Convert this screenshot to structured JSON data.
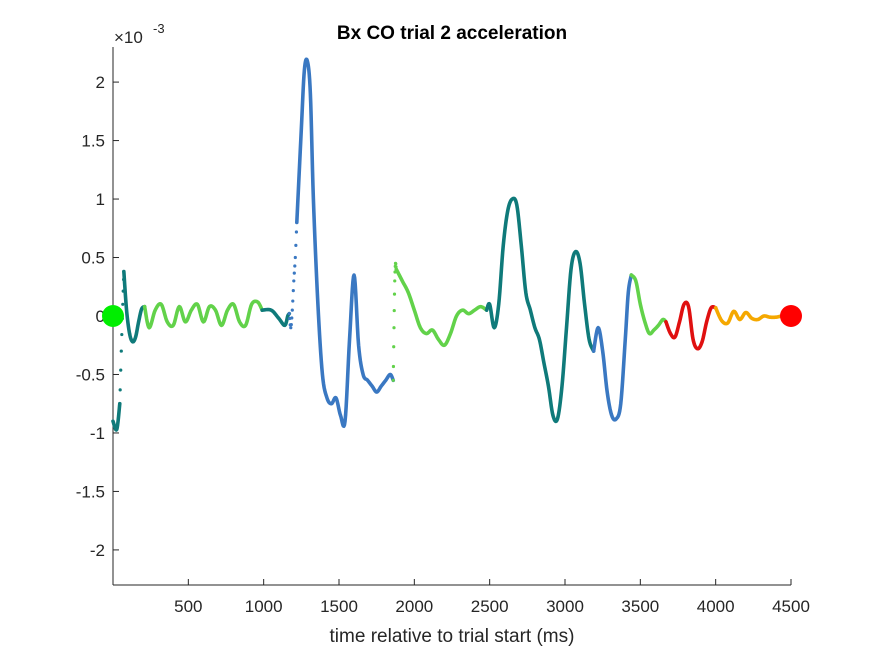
{
  "chart_data": {
    "type": "line",
    "title": "Bx  CO trial 2 acceleration",
    "xlabel": "time relative to trial start (ms)",
    "ylabel": "",
    "y_exponent_label": "×10",
    "y_exponent_power": "-3",
    "xlim": [
      0,
      4500
    ],
    "ylim": [
      -2.3,
      2.3
    ],
    "x_ticks": [
      500,
      1000,
      1500,
      2000,
      2500,
      3000,
      3500,
      4000,
      4500
    ],
    "x_tick_labels": [
      "500",
      "1000",
      "1500",
      "2000",
      "2500",
      "3000",
      "3500",
      "4000",
      "4500"
    ],
    "y_ticks": [
      -2,
      -1.5,
      -1,
      -0.5,
      0,
      0.5,
      1,
      1.5,
      2
    ],
    "y_tick_labels": [
      "-2",
      "-1.5",
      "-1",
      "-0.5",
      "0",
      "0.5",
      "1",
      "1.5",
      "2"
    ],
    "colors": {
      "teal": "#0f7a7a",
      "blue": "#3a78c2",
      "lightgreen": "#62d24a",
      "red": "#e01010",
      "orange": "#f5a800",
      "start_marker": "#00ee00",
      "end_marker": "#ff0000"
    },
    "series": [
      {
        "name": "seg1",
        "color": "teal",
        "dotted": false,
        "x": [
          0,
          25,
          45
        ],
        "y": [
          -0.9,
          -0.97,
          -0.75
        ]
      },
      {
        "name": "seg1-dots",
        "color": "teal",
        "dotted": true,
        "x": [
          45,
          55,
          65,
          72
        ],
        "y": [
          -0.75,
          -0.3,
          0.1,
          0.38
        ]
      },
      {
        "name": "seg2",
        "color": "teal",
        "dotted": false,
        "x": [
          72,
          90,
          110,
          130,
          150,
          170,
          190,
          210
        ],
        "y": [
          0.38,
          0.05,
          -0.15,
          -0.22,
          -0.18,
          -0.05,
          0.06,
          0.08
        ]
      },
      {
        "name": "seg3",
        "color": "lightgreen",
        "dotted": false,
        "x": [
          210,
          240,
          280,
          320,
          360,
          400,
          440,
          480,
          520,
          560,
          600,
          640,
          680,
          720,
          760,
          800,
          840,
          880,
          920,
          960,
          990
        ],
        "y": [
          0.08,
          -0.1,
          0.05,
          0.1,
          -0.05,
          -0.08,
          0.08,
          -0.05,
          0.05,
          0.1,
          -0.05,
          0.08,
          0.05,
          -0.08,
          0.05,
          0.1,
          -0.05,
          -0.08,
          0.1,
          0.12,
          0.05
        ]
      },
      {
        "name": "seg4",
        "color": "teal",
        "dotted": false,
        "x": [
          990,
          1050,
          1100,
          1140,
          1160,
          1170
        ],
        "y": [
          0.05,
          0.05,
          -0.02,
          -0.08,
          0.0,
          0.02
        ]
      },
      {
        "name": "seg5-dots",
        "color": "blue",
        "dotted": true,
        "x": [
          1170,
          1180,
          1190,
          1200,
          1210,
          1220
        ],
        "y": [
          0.02,
          -0.1,
          0.05,
          0.3,
          0.5,
          0.8
        ]
      },
      {
        "name": "seg5",
        "color": "blue",
        "dotted": false,
        "x": [
          1220,
          1250,
          1270,
          1290,
          1310,
          1330,
          1360,
          1390,
          1420,
          1450,
          1480,
          1510,
          1540,
          1570,
          1600,
          1630,
          1660,
          1690,
          1720,
          1750,
          1780,
          1810,
          1840,
          1860
        ],
        "y": [
          0.8,
          1.6,
          2.1,
          2.18,
          1.9,
          1.0,
          0.1,
          -0.5,
          -0.7,
          -0.75,
          -0.7,
          -0.85,
          -0.9,
          -0.2,
          0.35,
          -0.25,
          -0.5,
          -0.55,
          -0.6,
          -0.65,
          -0.6,
          -0.55,
          -0.5,
          -0.55
        ]
      },
      {
        "name": "seg6-dots",
        "color": "lightgreen",
        "dotted": true,
        "x": [
          1860,
          1865,
          1870,
          1875,
          1880
        ],
        "y": [
          -0.55,
          -0.1,
          0.3,
          0.45,
          0.4
        ]
      },
      {
        "name": "seg6",
        "color": "lightgreen",
        "dotted": false,
        "x": [
          1880,
          1920,
          1960,
          2000,
          2040,
          2080,
          2120,
          2160,
          2200,
          2240,
          2280,
          2320,
          2360,
          2400,
          2440,
          2480
        ],
        "y": [
          0.4,
          0.3,
          0.2,
          0.05,
          -0.1,
          -0.15,
          -0.12,
          -0.2,
          -0.25,
          -0.15,
          0.0,
          0.05,
          0.02,
          0.05,
          0.08,
          0.05
        ]
      },
      {
        "name": "seg7",
        "color": "teal",
        "dotted": false,
        "x": [
          2480,
          2500,
          2530,
          2560,
          2590,
          2620,
          2650,
          2680,
          2710,
          2740,
          2770,
          2800,
          2830,
          2860,
          2890,
          2920,
          2950,
          2980,
          3010,
          3040,
          3070,
          3100,
          3130,
          3160,
          3190
        ],
        "y": [
          0.05,
          0.1,
          -0.1,
          0.1,
          0.6,
          0.9,
          1.0,
          0.95,
          0.6,
          0.2,
          0.05,
          -0.1,
          -0.2,
          -0.4,
          -0.6,
          -0.85,
          -0.88,
          -0.6,
          -0.1,
          0.4,
          0.55,
          0.45,
          0.1,
          -0.2,
          -0.3
        ]
      },
      {
        "name": "seg8",
        "color": "blue",
        "dotted": false,
        "x": [
          3190,
          3220,
          3250,
          3280,
          3310,
          3340,
          3370,
          3400,
          3420,
          3440
        ],
        "y": [
          -0.3,
          -0.1,
          -0.3,
          -0.65,
          -0.85,
          -0.88,
          -0.75,
          -0.2,
          0.2,
          0.35
        ]
      },
      {
        "name": "seg9",
        "color": "lightgreen",
        "dotted": false,
        "x": [
          3440,
          3470,
          3500,
          3530,
          3560,
          3590,
          3620,
          3650,
          3670
        ],
        "y": [
          0.35,
          0.3,
          0.1,
          -0.05,
          -0.15,
          -0.12,
          -0.08,
          -0.03,
          -0.05
        ]
      },
      {
        "name": "seg10",
        "color": "red",
        "dotted": false,
        "x": [
          3670,
          3700,
          3730,
          3760,
          3790,
          3820,
          3850,
          3880,
          3910,
          3940,
          3970,
          4000
        ],
        "y": [
          -0.05,
          -0.15,
          -0.18,
          -0.05,
          0.1,
          0.08,
          -0.2,
          -0.28,
          -0.22,
          -0.05,
          0.07,
          0.07
        ]
      },
      {
        "name": "seg11",
        "color": "orange",
        "dotted": false,
        "x": [
          4000,
          4040,
          4080,
          4120,
          4160,
          4200,
          4240,
          4280,
          4320,
          4360,
          4400,
          4440,
          4470
        ],
        "y": [
          0.07,
          -0.04,
          -0.06,
          0.04,
          -0.03,
          0.03,
          -0.02,
          -0.03,
          0.0,
          -0.01,
          -0.01,
          0.0,
          0.0
        ]
      }
    ],
    "start_marker": {
      "x": 0,
      "y": 0
    },
    "end_marker": {
      "x": 4500,
      "y": 0
    }
  }
}
